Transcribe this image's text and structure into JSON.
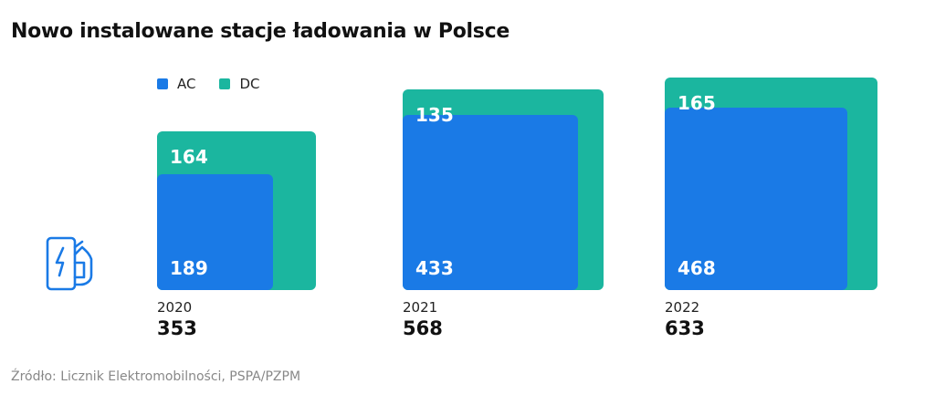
{
  "title": "Nowo instalowane stacje ładowania w Polsce",
  "source": "Źródło: Licznik Elektromobilności, PSPA/PZPM",
  "colors": {
    "AC": "#1a7ae6",
    "DC": "#1bb69f",
    "icon": "#1a7ae6"
  },
  "icon": "ev-charger-icon",
  "chart_data": {
    "type": "bar",
    "categories": [
      "2020",
      "2021",
      "2022"
    ],
    "series": [
      {
        "name": "AC",
        "values": [
          189,
          433,
          468
        ]
      },
      {
        "name": "DC",
        "values": [
          164,
          135,
          165
        ]
      }
    ],
    "totals": [
      "353",
      "568",
      "633"
    ],
    "legend": [
      "AC",
      "DC"
    ],
    "legend_position": "top-left",
    "title": "Nowo instalowane stacje ładowania w Polsce"
  }
}
